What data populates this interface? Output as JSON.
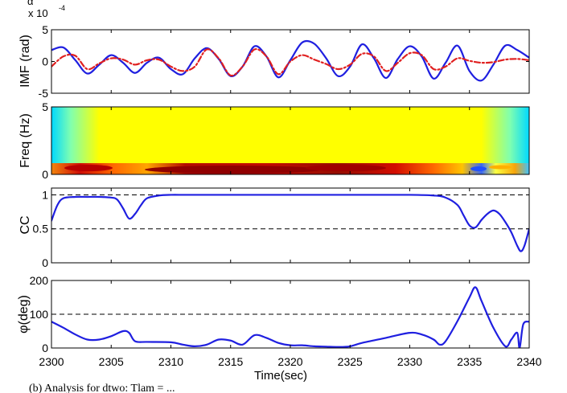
{
  "chart_data": [
    {
      "type": "line",
      "ylabel": "IMF (rad)",
      "y_multiplier": "x 10",
      "y_multiplier_exp": "-4",
      "top_fragment": "α",
      "xlim": [
        2300,
        2340
      ],
      "ylim": [
        -5,
        5
      ],
      "yticks": [
        "5",
        "0",
        "-5"
      ],
      "yticks_values": [
        5,
        0,
        -5
      ],
      "series": [
        {
          "color": "#1f1fe0",
          "style": "solid",
          "x": [
            2300,
            2301,
            2302,
            2303,
            2304,
            2305,
            2306,
            2307,
            2308,
            2309,
            2310,
            2311,
            2312,
            2313,
            2314,
            2315,
            2316,
            2317,
            2318,
            2319,
            2320,
            2321,
            2322,
            2323,
            2324,
            2325,
            2326,
            2327,
            2328,
            2329,
            2330,
            2331,
            2332,
            2333,
            2334,
            2335,
            2336,
            2337,
            2338,
            2339,
            2340
          ],
          "y": [
            1.8,
            2.2,
            0.2,
            -1.9,
            -0.5,
            1.0,
            -0.2,
            -1.8,
            -0.2,
            0.6,
            -1.2,
            -2.0,
            0.5,
            2.1,
            0.4,
            -2.3,
            -0.8,
            2.4,
            0.8,
            -2.5,
            0.2,
            3.0,
            2.8,
            0.5,
            -2.3,
            -0.8,
            2.7,
            0.5,
            -2.6,
            0.4,
            2.4,
            0.8,
            -2.7,
            -0.2,
            2.5,
            -1.5,
            -3.0,
            -0.5,
            2.5,
            1.8,
            0.6
          ]
        },
        {
          "color": "#e02020",
          "style": "dash-dot",
          "x": [
            2300,
            2301,
            2302,
            2303,
            2304,
            2305,
            2306,
            2307,
            2308,
            2309,
            2310,
            2311,
            2312,
            2313,
            2314,
            2315,
            2316,
            2317,
            2318,
            2319,
            2320,
            2321,
            2322,
            2323,
            2324,
            2325,
            2326,
            2327,
            2328,
            2329,
            2330,
            2331,
            2332,
            2333,
            2334,
            2335,
            2336,
            2337,
            2338,
            2339,
            2340
          ],
          "y": [
            -0.8,
            0.8,
            0.9,
            -1.2,
            -0.3,
            0.5,
            0.3,
            -0.5,
            0.2,
            0.3,
            -0.8,
            -1.5,
            -0.8,
            1.9,
            0.5,
            -2.2,
            -0.8,
            1.9,
            0.8,
            -2.0,
            0.0,
            1.0,
            0.3,
            -0.4,
            -1.2,
            -0.5,
            1.2,
            0.8,
            -1.5,
            -0.2,
            1.3,
            1.0,
            -1.2,
            -0.8,
            0.5,
            0.1,
            -0.2,
            -0.1,
            0.3,
            0.4,
            0.2
          ]
        }
      ]
    },
    {
      "type": "heatmap",
      "ylabel": "Freq (Hz)",
      "xlim": [
        2300,
        2340
      ],
      "ylim": [
        0,
        5
      ],
      "yticks": [
        "5",
        "0"
      ],
      "yticks_values": [
        5,
        0
      ],
      "colormap": "jet",
      "colormap_colors": [
        "#00007f",
        "#0000ff",
        "#00ffff",
        "#ffff00",
        "#ff8000",
        "#ff0000",
        "#7f0000"
      ]
    },
    {
      "type": "line",
      "ylabel": "CC",
      "xlim": [
        2300,
        2340
      ],
      "ylim": [
        0,
        1.1
      ],
      "yticks": [
        "1",
        "0.5",
        "0"
      ],
      "yticks_values": [
        1,
        0.5,
        0
      ],
      "reference_lines": [
        1,
        0.5
      ],
      "series": [
        {
          "color": "#1f1fe0",
          "x": [
            2300,
            2300.5,
            2301,
            2302,
            2303,
            2304,
            2305,
            2305.5,
            2306,
            2306.5,
            2307,
            2307.5,
            2308,
            2309,
            2310,
            2311,
            2312,
            2315,
            2320,
            2325,
            2330,
            2332,
            2333,
            2334,
            2334.5,
            2335,
            2335.5,
            2336,
            2336.5,
            2337,
            2337.5,
            2338,
            2338.5,
            2339,
            2339.3,
            2339.6,
            2340
          ],
          "y": [
            0.62,
            0.85,
            0.95,
            0.97,
            0.97,
            0.97,
            0.96,
            0.93,
            0.8,
            0.65,
            0.72,
            0.85,
            0.95,
            0.99,
            1.0,
            1.0,
            1.0,
            1.0,
            1.0,
            1.0,
            1.0,
            0.99,
            0.96,
            0.85,
            0.7,
            0.55,
            0.52,
            0.63,
            0.72,
            0.77,
            0.72,
            0.6,
            0.45,
            0.25,
            0.17,
            0.25,
            0.5
          ]
        }
      ]
    },
    {
      "type": "line",
      "ylabel": "φ(deg)",
      "xlabel": "Time(sec)",
      "xlim": [
        2300,
        2340
      ],
      "ylim": [
        0,
        200
      ],
      "yticks": [
        "200",
        "100",
        "0"
      ],
      "yticks_values": [
        200,
        100,
        0
      ],
      "xticks": [
        "2300",
        "2305",
        "2310",
        "2315",
        "2320",
        "2325",
        "2330",
        "2335",
        "2340"
      ],
      "xticks_values": [
        2300,
        2305,
        2310,
        2315,
        2320,
        2325,
        2330,
        2335,
        2340
      ],
      "reference_lines": [
        100
      ],
      "series": [
        {
          "color": "#1f1fe0",
          "x": [
            2300,
            2301,
            2302,
            2303,
            2304,
            2305,
            2306,
            2306.5,
            2307,
            2308,
            2310,
            2311,
            2312,
            2313,
            2314,
            2315,
            2316,
            2317,
            2318,
            2319,
            2320,
            2321,
            2322,
            2323,
            2324,
            2325,
            2326,
            2328,
            2330,
            2331,
            2332,
            2332.5,
            2333,
            2334,
            2335,
            2335.5,
            2336,
            2337,
            2338,
            2338.5,
            2339,
            2339.2,
            2339.5,
            2340
          ],
          "y": [
            78,
            60,
            40,
            25,
            25,
            35,
            50,
            45,
            20,
            18,
            17,
            10,
            5,
            10,
            25,
            22,
            10,
            38,
            30,
            15,
            8,
            8,
            5,
            4,
            3,
            5,
            15,
            30,
            45,
            40,
            25,
            10,
            20,
            80,
            150,
            180,
            140,
            60,
            5,
            25,
            45,
            0,
            70,
            78
          ]
        }
      ]
    }
  ],
  "caption": "(b) Analysis for dtwo: Tlam = ..."
}
